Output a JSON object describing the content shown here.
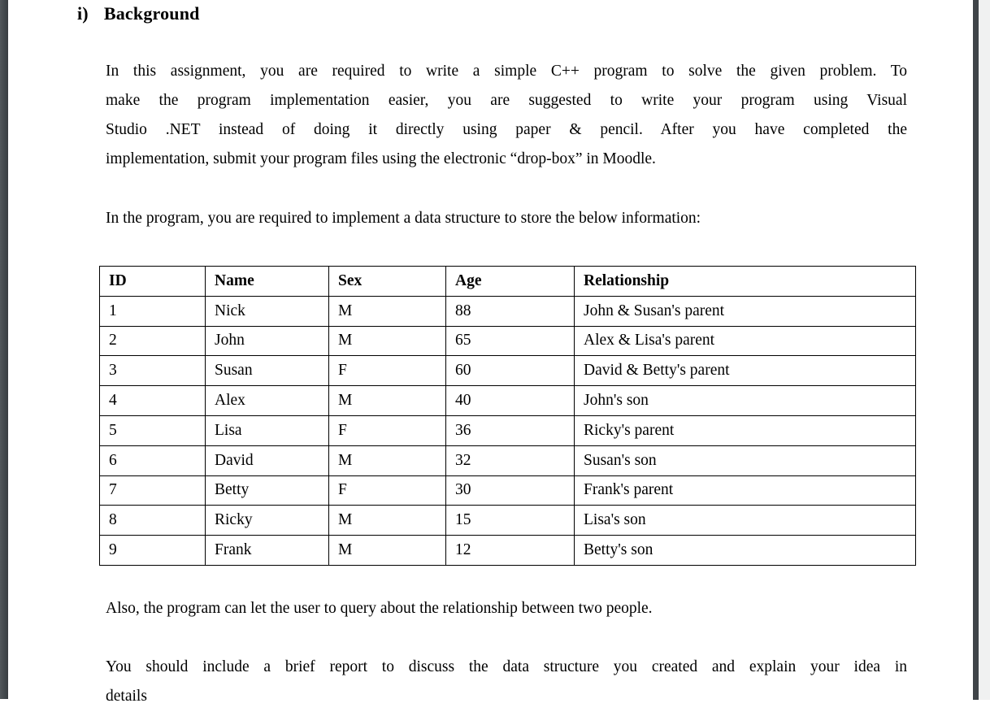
{
  "page": {
    "heading": {
      "numeral": "i)",
      "title": "Background"
    },
    "paragraphs": {
      "intro_lines": [
        "In this assignment, you are required to write a simple C++ program to solve the given problem. To",
        "make the program implementation easier, you are suggested to write your program using Visual",
        "Studio .NET instead of doing it directly using paper & pencil. After you have completed the",
        "implementation, submit your program files using the electronic “drop-box” in Moodle."
      ],
      "implement": "In the program, you are required to implement a data structure to store the below information:",
      "query": "Also, the program can let the user to query about the relationship between two people.",
      "report_lines": [
        "You should include a brief report to discuss the data structure you created and explain your idea in",
        "details"
      ]
    },
    "table": {
      "headers": [
        "ID",
        "Name",
        "Sex",
        "Age",
        "Relationship"
      ],
      "rows": [
        [
          "1",
          "Nick",
          "M",
          "88",
          "John & Susan's parent"
        ],
        [
          "2",
          "John",
          "M",
          "65",
          "Alex & Lisa's parent"
        ],
        [
          "3",
          "Susan",
          "F",
          "60",
          "David & Betty's parent"
        ],
        [
          "4",
          "Alex",
          "M",
          "40",
          "John's son"
        ],
        [
          "5",
          "Lisa",
          "F",
          "36",
          "Ricky's parent"
        ],
        [
          "6",
          "David",
          "M",
          "32",
          "Susan's son"
        ],
        [
          "7",
          "Betty",
          "F",
          "30",
          "Frank's parent"
        ],
        [
          "8",
          "Ricky",
          "M",
          "15",
          "Lisa's son"
        ],
        [
          "9",
          "Frank",
          "M",
          "12",
          "Betty's son"
        ]
      ]
    },
    "colors": {
      "edge_dark": "#3f4448",
      "viewer_gray": "#f0f1f1",
      "text": "#000000",
      "page_bg": "#ffffff"
    }
  }
}
